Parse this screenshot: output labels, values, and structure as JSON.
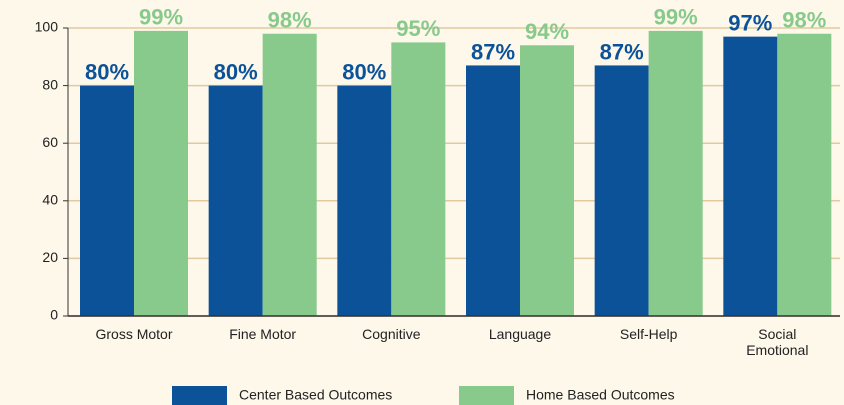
{
  "chart_data": {
    "type": "bar",
    "categories": [
      "Gross Motor",
      "Fine Motor",
      "Cognitive",
      "Language",
      "Self-Help",
      "Social Emotional"
    ],
    "series": [
      {
        "name": "Center Based Outcomes",
        "color": "#0b5299",
        "values": [
          80,
          80,
          80,
          87,
          87,
          97
        ],
        "value_labels": [
          "80%",
          "80%",
          "80%",
          "87%",
          "87%",
          "97%"
        ]
      },
      {
        "name": "Home Based Outcomes",
        "color": "#88c98c",
        "values": [
          99,
          98,
          95,
          94,
          99,
          98
        ],
        "value_labels": [
          "99%",
          "98%",
          "95%",
          "94%",
          "99%",
          "98%"
        ]
      }
    ],
    "ylim": [
      0,
      100
    ],
    "yticks": [
      0,
      20,
      40,
      60,
      80,
      100
    ],
    "grid": true,
    "legend": "bottom"
  }
}
